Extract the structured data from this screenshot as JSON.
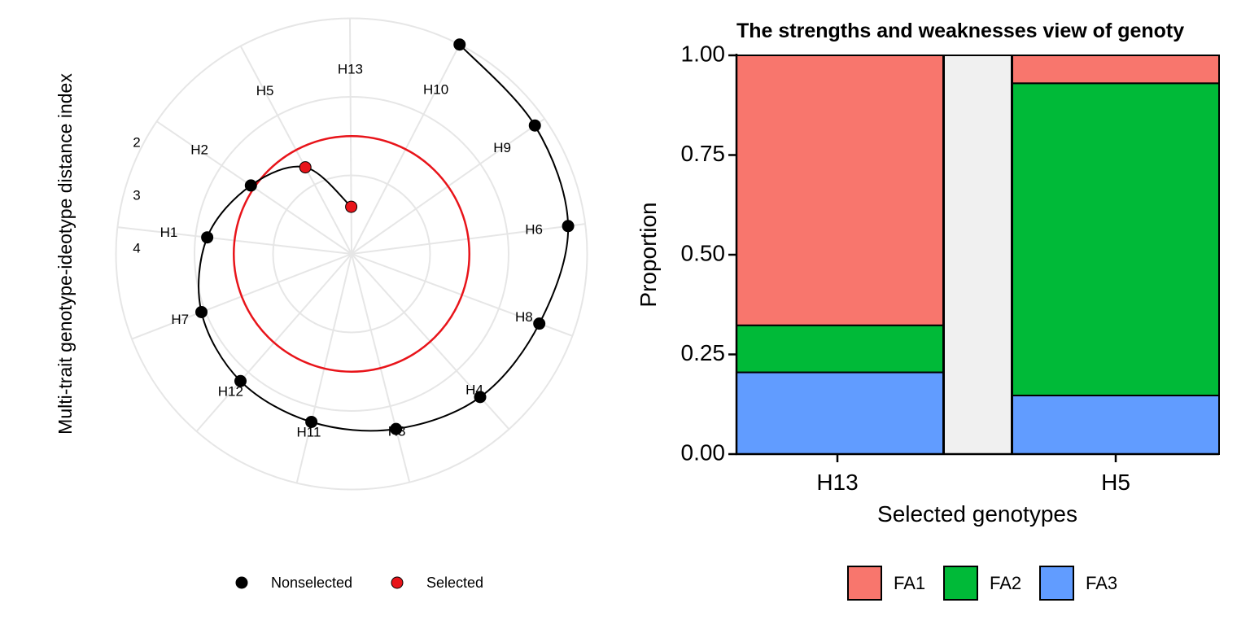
{
  "chart_data": [
    {
      "type": "scatter",
      "subtype": "radar",
      "ylabel": "Multi-trait genotype-ideotype distance index",
      "radial_ticks": [
        "2",
        "3",
        "4"
      ],
      "angular_labels": [
        "H13",
        "H10",
        "H9",
        "H6",
        "H8",
        "H4",
        "H3",
        "H11",
        "H12",
        "H7",
        "H1",
        "H2",
        "H5"
      ],
      "points": [
        {
          "genotype": "H13",
          "value": 1.6,
          "status": "Selected"
        },
        {
          "genotype": "H5",
          "value": 2.25,
          "status": "Selected"
        },
        {
          "genotype": "H2",
          "value": 2.55,
          "status": "Nonselected"
        },
        {
          "genotype": "H1",
          "value": 2.85,
          "status": "Nonselected"
        },
        {
          "genotype": "H7",
          "value": 3.05,
          "status": "Nonselected"
        },
        {
          "genotype": "H12",
          "value": 3.15,
          "status": "Nonselected"
        },
        {
          "genotype": "H11",
          "value": 3.2,
          "status": "Nonselected"
        },
        {
          "genotype": "H3",
          "value": 3.3,
          "status": "Nonselected"
        },
        {
          "genotype": "H4",
          "value": 3.45,
          "status": "Nonselected"
        },
        {
          "genotype": "H8",
          "value": 3.55,
          "status": "Nonselected"
        },
        {
          "genotype": "H6",
          "value": 3.78,
          "status": "Nonselected"
        },
        {
          "genotype": "H9",
          "value": 3.85,
          "status": "Nonselected"
        },
        {
          "genotype": "H10",
          "value": 4.0,
          "status": "Nonselected"
        }
      ],
      "cutoff_value": 2.5,
      "legend": [
        {
          "label": "Nonselected",
          "color": "#000000"
        },
        {
          "label": "Selected",
          "color": "#e8141a"
        }
      ],
      "legend_position": "bottom",
      "grid": true
    },
    {
      "type": "bar",
      "subtype": "stacked-proportion",
      "title": "The strengths and weaknesses view of genoty",
      "xlabel": "Selected genotypes",
      "ylabel": "Proportion",
      "categories": [
        "H13",
        "",
        "H5"
      ],
      "y_ticks": [
        "0.00",
        "0.25",
        "0.50",
        "0.75",
        "1.00"
      ],
      "ylim": [
        0,
        1
      ],
      "series": [
        {
          "name": "FA3",
          "color": "#619cff",
          "values": [
            0.205,
            null,
            0.147
          ]
        },
        {
          "name": "FA2",
          "color": "#00ba38",
          "values": [
            0.118,
            null,
            0.783
          ]
        },
        {
          "name": "FA1",
          "color": "#f8766d",
          "values": [
            0.677,
            null,
            0.07
          ]
        }
      ],
      "gap_bar": {
        "category_index": 1,
        "value": 1.0,
        "color": "#f0f0f0"
      },
      "legend": [
        "FA1",
        "FA2",
        "FA3"
      ],
      "legend_position": "bottom"
    }
  ]
}
